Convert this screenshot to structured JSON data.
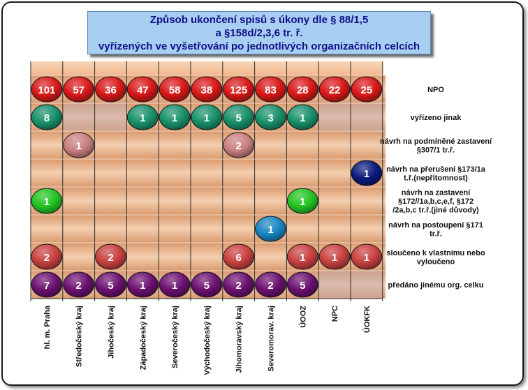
{
  "title": {
    "line1": "Způsob ukončení spisů s úkony dle § 88/1,5",
    "line2": "a §158d/2,3,6 tr. ř.",
    "line3": "vyřízených ve vyšetřování po jednotlivých organizačních celcích"
  },
  "colors": {
    "NPO": "#d81818",
    "vyrizeno_jinak": "#18906a",
    "podminene": "#c98080",
    "preruseni": "#0a1a7c",
    "zastaveni": "#22c422",
    "postoupeni": "#1a84c0",
    "slouceno": "#c84040",
    "predano": "#6a1070",
    "band_light": "#f2c6a0",
    "band_dark": "#cc8c64"
  },
  "chart_data": {
    "type": "table",
    "columns": [
      "hl. m. Praha",
      "Středočeský kraj",
      "Jihočeský kraj",
      "Západočeský kraj",
      "Severočeský kraj",
      "Východočeský kraj",
      "Jihomoravský kraj",
      "Severomorav. kraj",
      "ÚOOZ",
      "NPC",
      "ÚOKFK"
    ],
    "rows": [
      {
        "label": "NPO",
        "color_key": "NPO",
        "values": [
          101,
          57,
          36,
          47,
          58,
          38,
          125,
          83,
          28,
          22,
          25
        ]
      },
      {
        "label": "vyřízeno jinak",
        "color_key": "vyrizeno_jinak",
        "values": [
          8,
          null,
          null,
          1,
          1,
          1,
          5,
          3,
          1,
          null,
          null
        ]
      },
      {
        "label": "návrh na podmíněné zastavení §307/1  tr.ř.",
        "color_key": "podminene",
        "values": [
          null,
          1,
          null,
          null,
          null,
          null,
          2,
          null,
          null,
          null,
          null
        ]
      },
      {
        "label": "návrh na přerušení  §173/1a t.ř.(nepřítomnost)",
        "color_key": "preruseni",
        "values": [
          null,
          null,
          null,
          null,
          null,
          null,
          null,
          null,
          null,
          null,
          1
        ]
      },
      {
        "label": "návrh na zastavení §172//1a,b,c,e,f,  §172 /2a,b,c tr.ř.(jiné důvody)",
        "color_key": "zastaveni",
        "values": [
          1,
          null,
          null,
          null,
          null,
          null,
          null,
          null,
          1,
          null,
          null
        ]
      },
      {
        "label": "návrh na postoupení §171 tr.ř.",
        "color_key": "postoupeni",
        "values": [
          null,
          null,
          null,
          null,
          null,
          null,
          null,
          1,
          null,
          null,
          null
        ]
      },
      {
        "label": "sloučeno k vlastnímu nebo vyloučeno",
        "color_key": "slouceno",
        "values": [
          2,
          null,
          2,
          null,
          null,
          null,
          6,
          null,
          1,
          1,
          1
        ]
      },
      {
        "label": "předáno jinému org. celku",
        "color_key": "predano",
        "values": [
          7,
          2,
          5,
          1,
          1,
          5,
          2,
          2,
          5,
          null,
          null
        ]
      }
    ]
  }
}
